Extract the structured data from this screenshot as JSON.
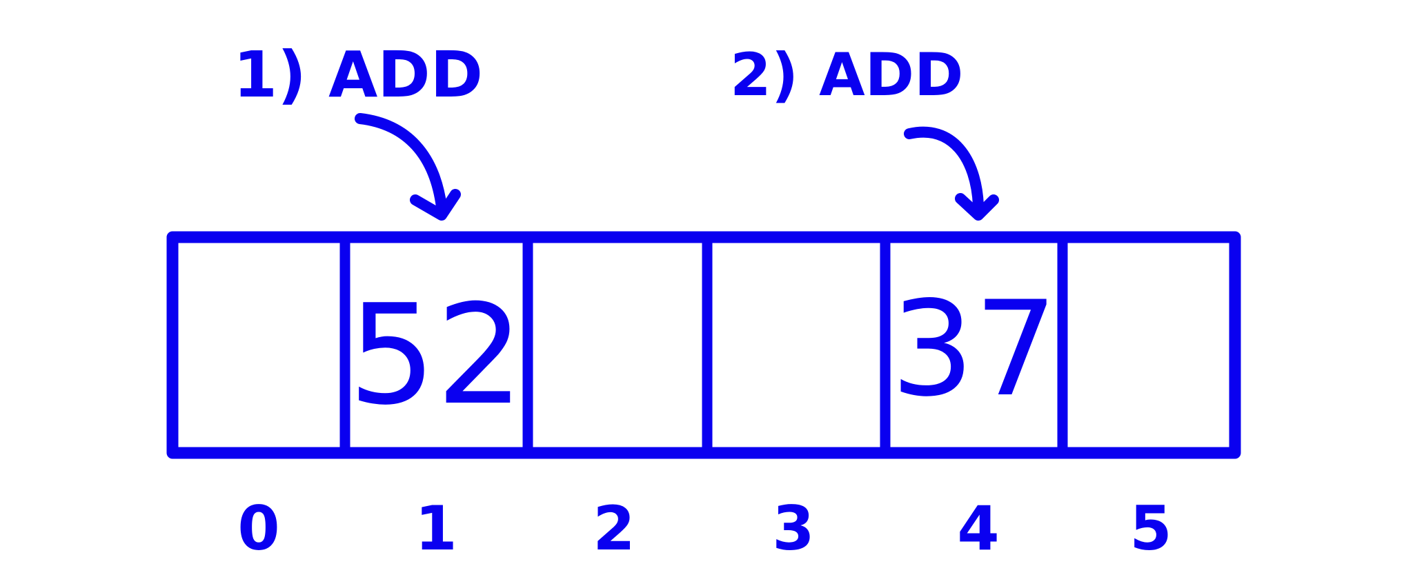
{
  "colors": {
    "ink": "#0a00f0",
    "background": "#ffffff"
  },
  "annotations": [
    {
      "label": "1) ADD",
      "target_index": 1
    },
    {
      "label": "2) ADD",
      "target_index": 4
    }
  ],
  "array": {
    "cells": [
      "",
      "52",
      "",
      "",
      "37",
      ""
    ],
    "indices": [
      "0",
      "1",
      "2",
      "3",
      "4",
      "5"
    ]
  }
}
